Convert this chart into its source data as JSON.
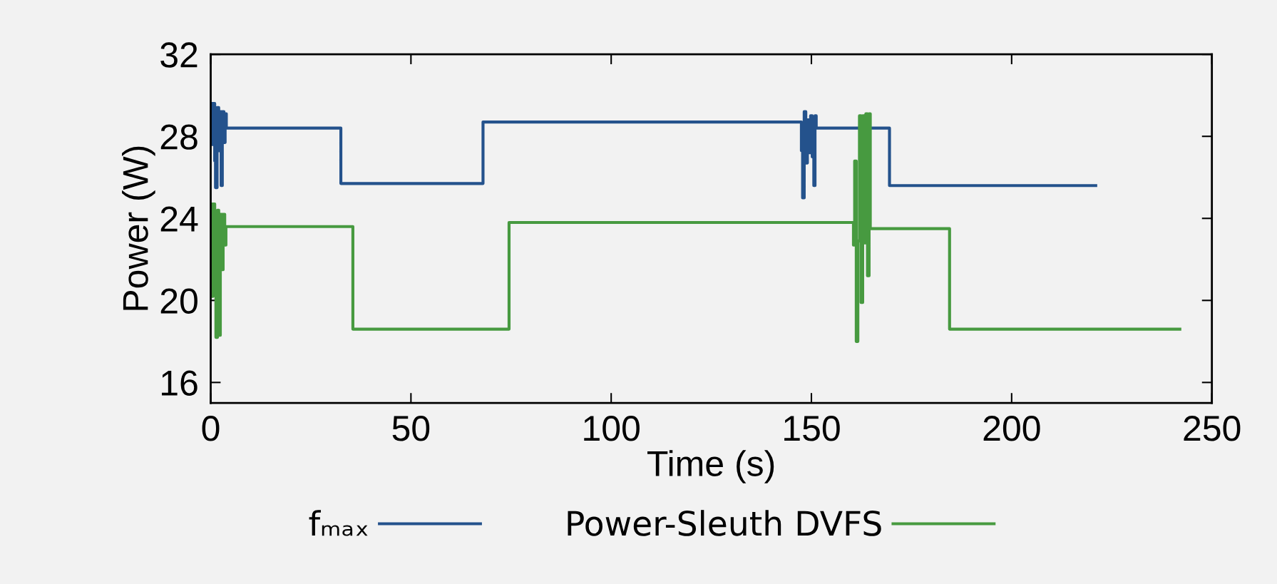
{
  "chart_data": {
    "type": "step",
    "xlabel": "Time (s)",
    "ylabel": "Power (W)",
    "xlim": [
      0,
      250
    ],
    "xticks": [
      0,
      50,
      100,
      150,
      200,
      250
    ],
    "ylim": [
      15,
      32
    ],
    "yticks": [
      16,
      20,
      24,
      28,
      32
    ],
    "grid": false,
    "legend": "bottom",
    "line_style": "solid",
    "marker": "none",
    "series": [
      {
        "name": "fₘₐₓ",
        "color": "#24528c",
        "x": [
          0,
          0.3,
          0.5,
          1,
          1.2,
          1.6,
          2.0,
          2.3,
          2.6,
          2.9,
          3.3,
          3.6,
          3.9,
          32.5,
          68,
          147.5,
          147.8,
          148.2,
          148.6,
          149,
          149.4,
          149.8,
          150.2,
          150.6,
          150.9,
          151.2,
          169.5,
          221
        ],
        "values": [
          29.6,
          27.6,
          29.6,
          26.8,
          25.5,
          29.4,
          27.3,
          29.2,
          25.6,
          29.2,
          27.7,
          29.1,
          28.4,
          25.7,
          28.7,
          27.3,
          25.0,
          29.2,
          26.7,
          28.8,
          27.2,
          29.0,
          27.0,
          25.6,
          29.0,
          28.4,
          25.6,
          25.6
        ]
      },
      {
        "name": "Power-Sleuth DVFS",
        "color": "#479a40",
        "x": [
          0,
          0.3,
          0.6,
          1.0,
          1.3,
          1.7,
          2.0,
          2.4,
          2.8,
          3.1,
          3.5,
          3.8,
          35.5,
          74.5,
          160.5,
          160.8,
          161.2,
          161.6,
          162,
          162.4,
          162.8,
          163.2,
          163.6,
          164,
          164.4,
          164.7,
          184.5,
          242
        ],
        "values": [
          24.7,
          20.2,
          24.7,
          22.2,
          18.2,
          24.4,
          18.3,
          24.2,
          21.5,
          24.2,
          22.7,
          23.6,
          18.6,
          23.8,
          22.7,
          26.8,
          18.0,
          22.9,
          29.0,
          19.9,
          29.0,
          22.8,
          29.1,
          21.2,
          29.1,
          23.5,
          18.6,
          18.6
        ]
      }
    ]
  }
}
